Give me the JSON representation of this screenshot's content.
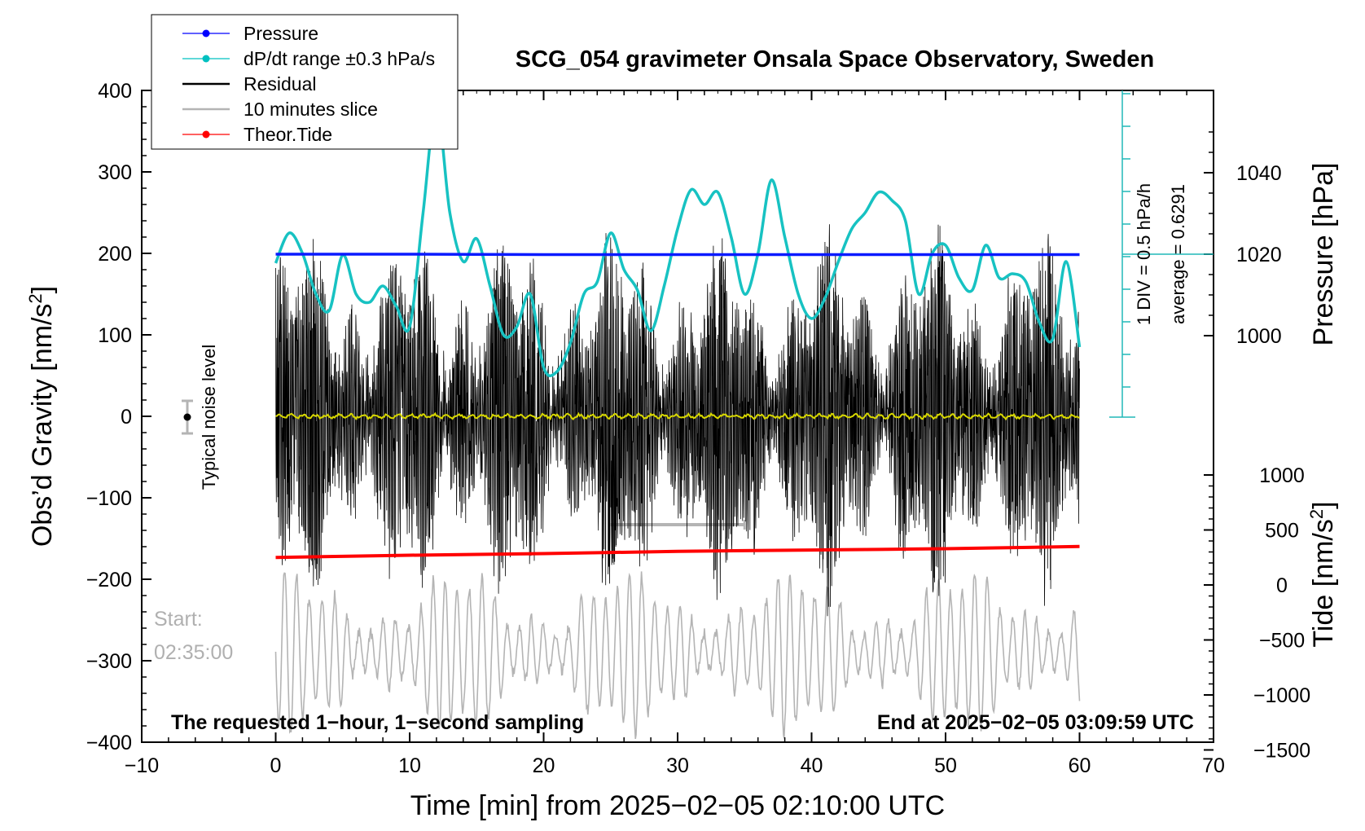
{
  "chart_data": {
    "type": "line",
    "title": "SCG_054 gravimeter Onsala Space Observatory, Sweden",
    "xlabel": "Time [min] from 2025−02−05 02:10:00 UTC",
    "ylabel_left": "Obs’d Gravity [nm/s",
    "ylabel_left_sup": "2",
    "ylabel_left_close": "]",
    "ylabel_right_pressure": "Pressure [hPa]",
    "ylabel_right_tide": "Tide [nm/s",
    "ylabel_right_tide_sup": "2",
    "ylabel_right_tide_close": "]",
    "xlim": [
      -10,
      70
    ],
    "ylim_left": [
      -400,
      400
    ],
    "x_ticks": [
      -10,
      0,
      10,
      20,
      30,
      40,
      50,
      60,
      70
    ],
    "x_tick_labels": [
      "−10",
      "0",
      "10",
      "20",
      "30",
      "40",
      "50",
      "60",
      "70"
    ],
    "y_left_ticks": [
      400,
      300,
      200,
      100,
      0,
      -100,
      -200,
      -300,
      -400
    ],
    "y_left_tick_labels": [
      "400",
      "300",
      "200",
      "100",
      "0",
      "−100",
      "−200",
      "−300",
      "−400"
    ],
    "pressure_ticks": [
      1040,
      1020,
      1000
    ],
    "pressure_tick_labels": [
      "1040",
      "1020",
      "1000"
    ],
    "tide_ticks": [
      1000,
      500,
      0,
      -500,
      -1000,
      -1500
    ],
    "tide_tick_labels": [
      "1000",
      "500",
      "0",
      "−500",
      "−1000",
      "−1500"
    ],
    "legend": [
      {
        "label": "Pressure",
        "color": "#0000ff",
        "marker": true
      },
      {
        "label": "dP/dt range ±0.3 hPa/s",
        "color": "#00c0c0",
        "marker": true
      },
      {
        "label": "Residual",
        "color": "#000000",
        "marker": false
      },
      {
        "label": "10 minutes slice",
        "color": "#b4b4b4",
        "marker": false
      },
      {
        "label": "Theor.Tide",
        "color": "#ff0000",
        "marker": true
      }
    ],
    "series": [
      {
        "name": "Pressure",
        "unit": "hPa",
        "x": [
          0,
          10,
          20,
          30,
          40,
          50,
          60
        ],
        "values": [
          1020.0,
          1020.0,
          1019.9,
          1019.9,
          1019.9,
          1019.9,
          1019.9
        ]
      },
      {
        "name": "dP/dt range ±0.3 hPa/s",
        "unit": "nm/s2 axis",
        "x": [
          0,
          1,
          2,
          3,
          4,
          5,
          6,
          7,
          8,
          9,
          10,
          11,
          12,
          13,
          14,
          15,
          16,
          17,
          18,
          19,
          20,
          21,
          22,
          23,
          24,
          25,
          26,
          27,
          28,
          29,
          30,
          31,
          32,
          33,
          34,
          35,
          36,
          37,
          38,
          39,
          40,
          41,
          42,
          43,
          44,
          45,
          46,
          47,
          48,
          49,
          50,
          51,
          52,
          53,
          54,
          55,
          56,
          57,
          58,
          59,
          60
        ],
        "values": [
          188,
          225,
          200,
          150,
          130,
          198,
          150,
          140,
          160,
          135,
          110,
          250,
          380,
          250,
          190,
          218,
          160,
          100,
          110,
          150,
          60,
          55,
          90,
          150,
          165,
          225,
          180,
          155,
          105,
          160,
          230,
          278,
          260,
          275,
          220,
          150,
          200,
          290,
          220,
          150,
          120,
          145,
          190,
          230,
          250,
          275,
          265,
          240,
          150,
          200,
          210,
          170,
          155,
          210,
          170,
          175,
          165,
          115,
          95,
          190,
          85
        ]
      },
      {
        "name": "Residual",
        "unit": "nm/s2",
        "x": [
          0,
          60
        ],
        "amplitude_approx": 170
      },
      {
        "name": "10 minutes slice",
        "unit": "nm/s2",
        "x_range": [
          25,
          35
        ],
        "y": -133
      },
      {
        "name": "Theor.Tide",
        "unit": "nm/s2",
        "x": [
          0,
          10,
          20,
          30,
          40,
          50,
          60
        ],
        "values": [
          250,
          270,
          285,
          305,
          318,
          330,
          350
        ]
      }
    ],
    "pressure_scale": {
      "div_label": "1 DIV = 0.5 hPa/h",
      "average_label": "average = 0.6291"
    },
    "noise_label": "Typical noise level",
    "noise_value": 0,
    "noise_range": [
      -20,
      20
    ]
  },
  "annotations": {
    "start_label": "Start:",
    "start_time": "02:35:00",
    "bottom_left": "The requested 1−hour, 1−second sampling",
    "bottom_right": "End at 2025−02−05 03:09:59 UTC"
  }
}
